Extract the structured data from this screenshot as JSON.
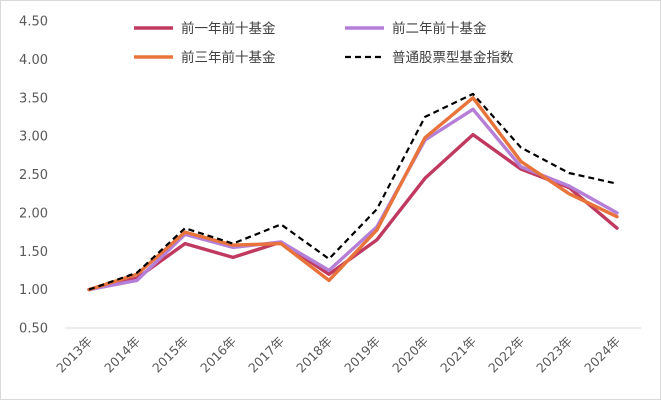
{
  "chart_data": {
    "type": "line",
    "title": "",
    "xlabel": "",
    "ylabel": "",
    "categories": [
      "2013年",
      "2014年",
      "2015年",
      "2016年",
      "2017年",
      "2018年",
      "2019年",
      "2020年",
      "2021年",
      "2022年",
      "2023年",
      "2024年"
    ],
    "ylim": [
      0.5,
      4.5
    ],
    "yticks": [
      "0.50",
      "1.00",
      "1.50",
      "2.00",
      "2.50",
      "3.00",
      "3.50",
      "4.00",
      "4.50"
    ],
    "grid": false,
    "legend_position": "top",
    "series": [
      {
        "name": "前一年前十基金",
        "color": "#c0395f",
        "dash": "solid",
        "values": [
          1.0,
          1.15,
          1.6,
          1.42,
          1.62,
          1.2,
          1.65,
          2.45,
          3.02,
          2.57,
          2.33,
          1.8
        ]
      },
      {
        "name": "前二年前十基金",
        "color": "#b57fd8",
        "dash": "solid",
        "values": [
          1.0,
          1.12,
          1.72,
          1.55,
          1.62,
          1.25,
          1.82,
          2.95,
          3.35,
          2.6,
          2.35,
          2.0
        ]
      },
      {
        "name": "前三年前十基金",
        "color": "#e8743b",
        "dash": "solid",
        "values": [
          1.0,
          1.2,
          1.75,
          1.58,
          1.6,
          1.12,
          1.78,
          2.98,
          3.5,
          2.67,
          2.25,
          1.95
        ]
      },
      {
        "name": "普通股票型基金指数",
        "color": "#000000",
        "dash": "dashed",
        "values": [
          1.0,
          1.22,
          1.8,
          1.6,
          1.85,
          1.4,
          2.05,
          3.25,
          3.55,
          2.85,
          2.52,
          2.38
        ]
      }
    ]
  }
}
